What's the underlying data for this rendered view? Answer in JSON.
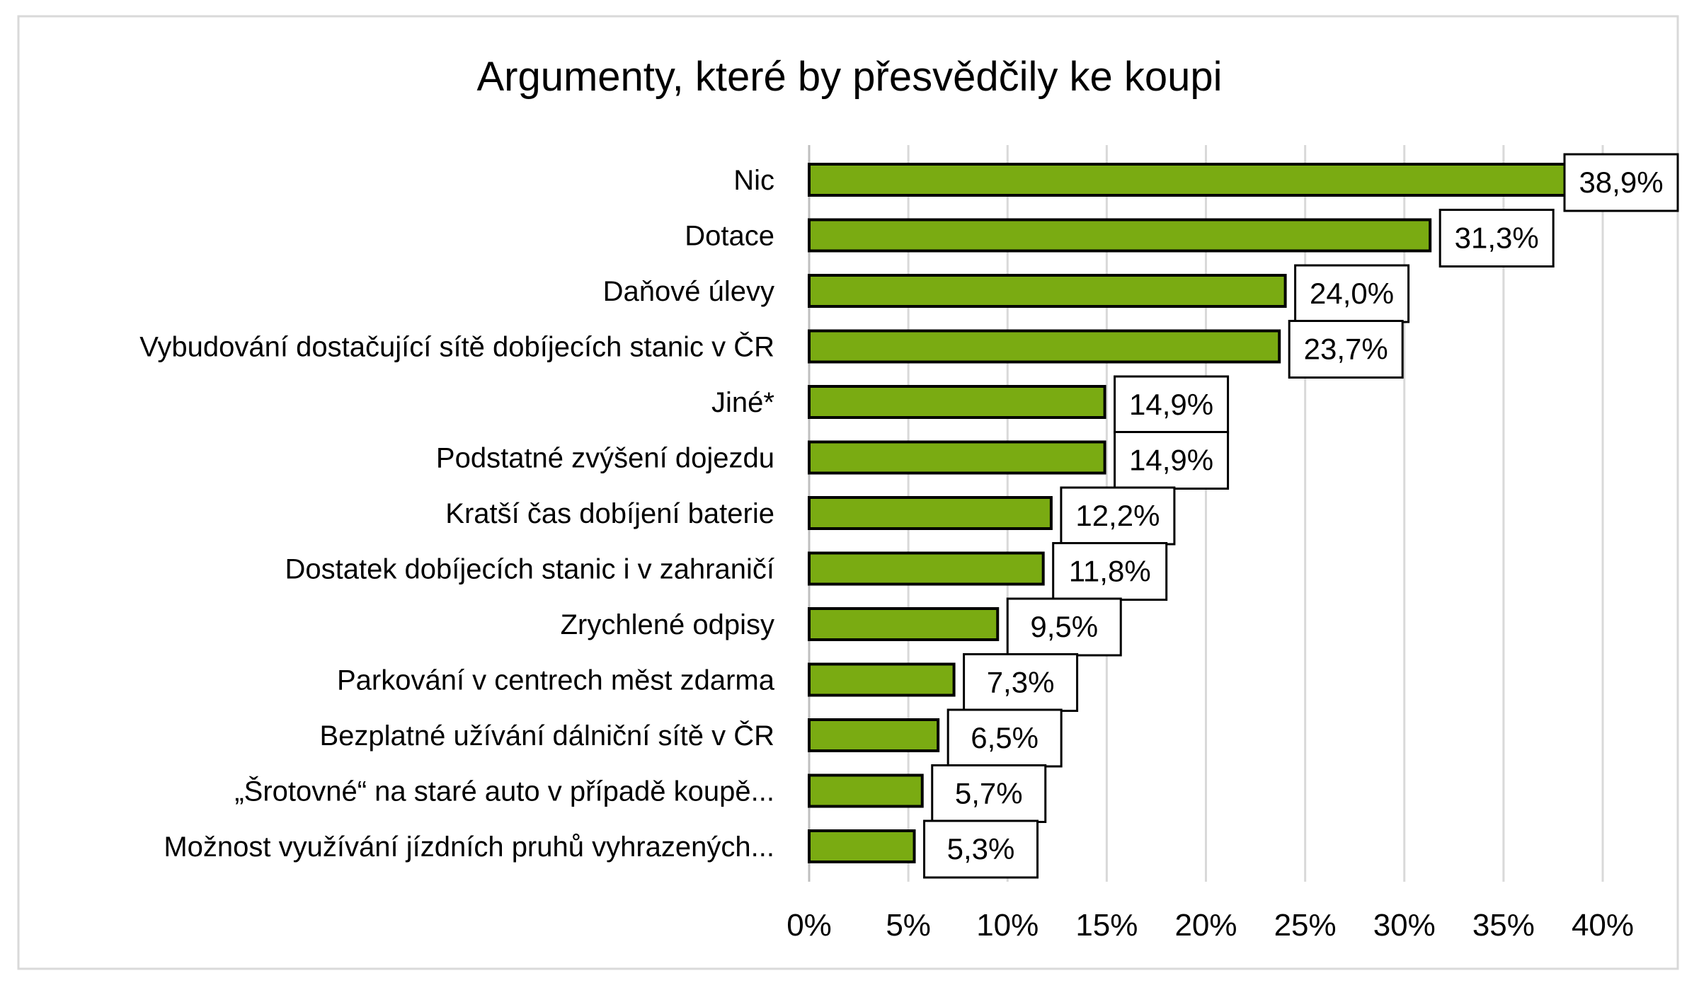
{
  "chart_data": {
    "type": "bar",
    "orientation": "horizontal",
    "title": "Argumenty, které by přesvědčily ke koupi",
    "xlabel": "",
    "ylabel": "",
    "categories": [
      "Nic",
      "Dotace",
      "Daňové úlevy",
      "Vybudování dostačující sítě dobíjecích stanic v ČR",
      "Jiné*",
      "Podstatné zvýšení dojezdu",
      "Kratší čas dobíjení baterie",
      "Dostatek dobíjecích stanic i v zahraničí",
      "Zrychlené odpisy",
      "Parkování v centrech měst zdarma",
      "Bezplatné užívání dálniční sítě v ČR",
      "„Šrotovné“ na staré auto v případě koupě...",
      "Možnost využívání jízdních pruhů vyhrazených..."
    ],
    "values": [
      38.9,
      31.3,
      24.0,
      23.7,
      14.9,
      14.9,
      12.2,
      11.8,
      9.5,
      7.3,
      6.5,
      5.7,
      5.3
    ],
    "data_labels": [
      "38,9%",
      "31,3%",
      "24,0%",
      "23,7%",
      "14,9%",
      "14,9%",
      "12,2%",
      "11,8%",
      "9,5%",
      "7,3%",
      "6,5%",
      "5,7%",
      "5,3%"
    ],
    "xlim": [
      0,
      40
    ],
    "x_ticks": [
      0,
      5,
      10,
      15,
      20,
      25,
      30,
      35,
      40
    ],
    "x_tick_labels": [
      "0%",
      "5%",
      "10%",
      "15%",
      "20%",
      "25%",
      "30%",
      "35%",
      "40%"
    ],
    "grid": "vertical",
    "legend": "none",
    "colors": {
      "bar": "#7aab12",
      "bar_outline": "#000000",
      "grid": "#d9d9d9",
      "border": "#d9d9d9"
    }
  }
}
